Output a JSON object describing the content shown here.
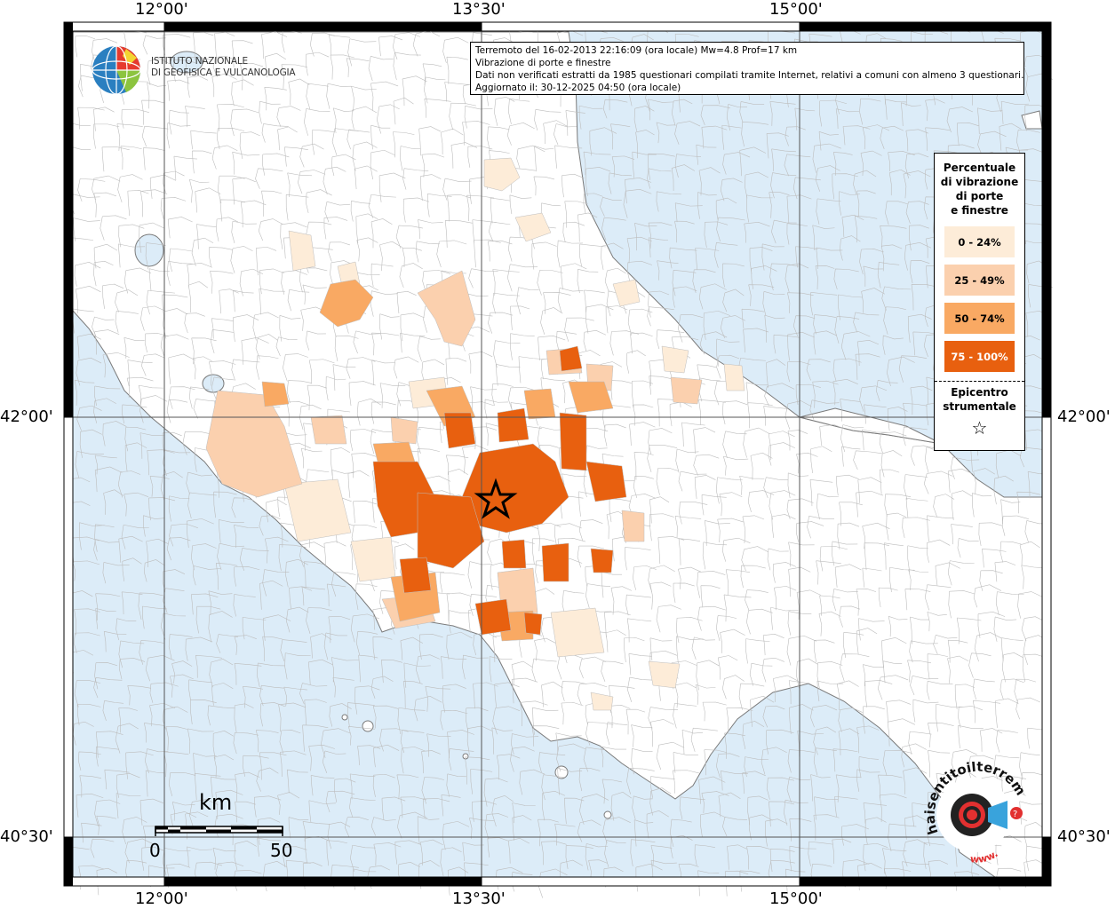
{
  "map": {
    "info": {
      "line1": "Terremoto del 16-02-2013 22:16:09 (ora locale) Mw=4.8 Prof=17 km",
      "line2": "Vibrazione di porte e finestre",
      "line3": "Dati non verificati estratti da 1985 questionari compilati tramite Internet, relativi a comuni con almeno 3 questionari.",
      "line4": "Aggiornato il: 30-12-2025 04:50 (ora locale)"
    },
    "axes": {
      "top": [
        "12°00'",
        "13°30'",
        "15°00'"
      ],
      "bottom": [
        "12°00'",
        "13°30'",
        "15°00'"
      ],
      "left": [
        "42°00'",
        "40°30'"
      ],
      "right": [
        "42°00'",
        "40°30'"
      ]
    },
    "legend": {
      "title_lines": [
        "Percentuale",
        "di vibrazione",
        "di porte",
        "e finestre"
      ],
      "classes": [
        {
          "label": "0 - 24%",
          "color": "#fdecd8"
        },
        {
          "label": "25 - 49%",
          "color": "#fbd0ae"
        },
        {
          "label": "50 - 74%",
          "color": "#f9a963"
        },
        {
          "label": "75 - 100%",
          "color": "#e8600f"
        }
      ],
      "epicenter_lines": [
        "Epicentro",
        "strumentale"
      ],
      "epicenter_symbol": "☆"
    },
    "scale": {
      "unit": "km",
      "start": "0",
      "end": "50"
    },
    "logos": {
      "ingv_line1": "ISTITUTO NAZIONALE",
      "ingv_line2": "DI GEOFISICA E VULCANOLOGIA",
      "hst_text": "haisentitoilterremoto.it",
      "hst_www": "www."
    },
    "colors": {
      "sea": "#dcecf8",
      "land": "#ffffff",
      "border": "#9a9a9a"
    }
  }
}
